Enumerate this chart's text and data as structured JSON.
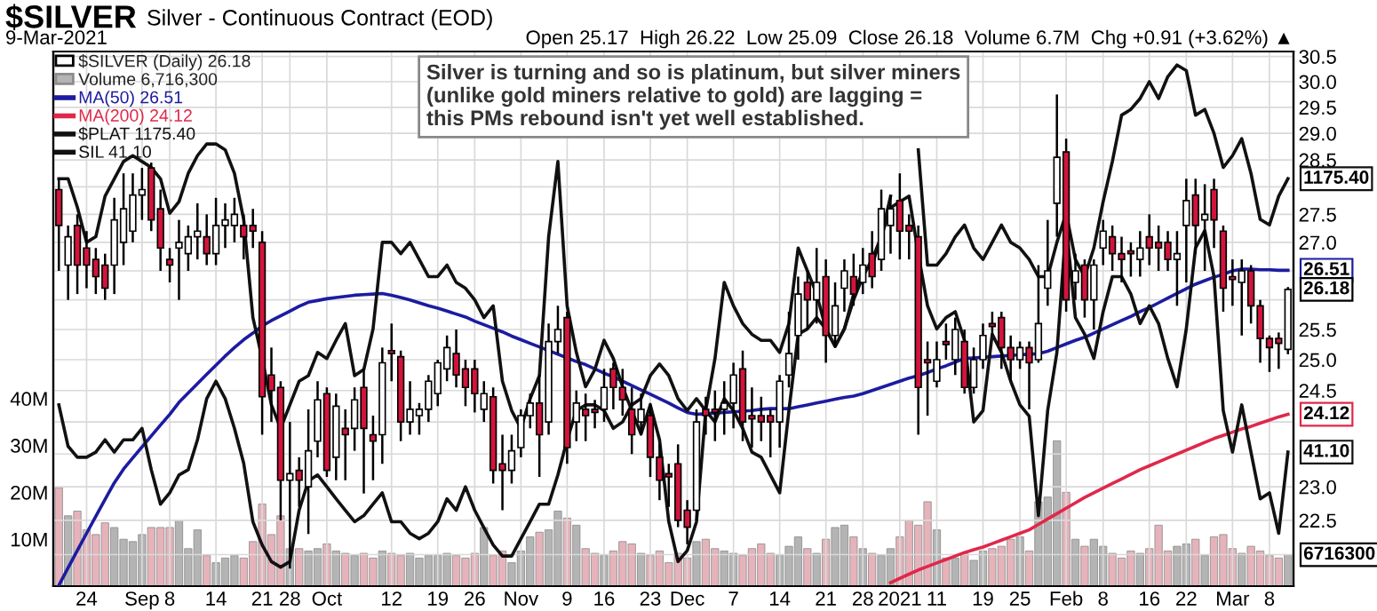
{
  "chart_data": {
    "type": "candlestick",
    "title": "$SILVER",
    "subtitle": "Silver - Continuous Contract (EOD)",
    "annotations": [
      "9-Mar-2021",
      "Open 25.17  High 26.22  Low 25.09  Close 26.18  Volume 6.7M  Chg +0.91 (+3.62%) ▲",
      "Silver is turning and so is platinum, but silver miners\n(unlike gold miners relative to gold) are lagging =\nthis PMs rebound isn't yet well established.",
      "1175.40",
      "26.51",
      "26.18",
      "24.12",
      "41.10",
      "6716300"
    ],
    "categories": [
      null,
      null,
      null,
      "24",
      null,
      null,
      null,
      null,
      null,
      "Sep",
      null,
      null,
      "8",
      null,
      null,
      null,
      null,
      "14",
      null,
      null,
      null,
      null,
      "21",
      null,
      null,
      "28",
      null,
      null,
      null,
      "Oct",
      null,
      null,
      null,
      null,
      null,
      null,
      "12",
      null,
      null,
      null,
      null,
      "19",
      null,
      null,
      null,
      "26",
      null,
      null,
      null,
      null,
      "Nov",
      null,
      null,
      null,
      null,
      "9",
      null,
      null,
      null,
      "16",
      null,
      null,
      null,
      null,
      "23",
      null,
      null,
      null,
      "Dec",
      null,
      null,
      null,
      null,
      "7",
      null,
      null,
      null,
      null,
      "14",
      null,
      null,
      null,
      null,
      "21",
      null,
      null,
      null,
      "28",
      null,
      null,
      null,
      "2021",
      null,
      null,
      null,
      "11",
      null,
      null,
      null,
      null,
      "19",
      null,
      null,
      null,
      "25",
      null,
      null,
      null,
      null,
      "Feb",
      null,
      null,
      null,
      "8",
      null,
      null,
      null,
      null,
      "16",
      null,
      null,
      null,
      "22",
      null,
      null,
      null,
      null,
      "Mar",
      null,
      null,
      null,
      "8",
      null,
      null
    ],
    "ylim": [
      21.55,
      30.6
    ],
    "yticks": [
      {
        "value": 22.0,
        "label": null
      },
      {
        "value": 22.5,
        "label": "22.5"
      },
      {
        "value": 23.0,
        "label": "23.0"
      },
      {
        "value": 23.5,
        "label": null
      },
      {
        "value": 24.0,
        "label": null
      },
      {
        "value": 24.5,
        "label": "24.5"
      },
      {
        "value": 25.0,
        "label": "25.0"
      },
      {
        "value": 25.5,
        "label": "25.5"
      },
      {
        "value": 26.0,
        "label": null
      },
      {
        "value": 26.5,
        "label": null
      },
      {
        "value": 27.0,
        "label": "27.0"
      },
      {
        "value": 27.5,
        "label": "27.5"
      },
      {
        "value": 28.0,
        "label": null
      },
      {
        "value": 28.5,
        "label": "28.5"
      },
      {
        "value": 29.0,
        "label": "29.0"
      },
      {
        "value": 29.5,
        "label": "29.5"
      },
      {
        "value": 30.0,
        "label": "30.0"
      },
      {
        "value": 30.5,
        "label": "30.5"
      }
    ],
    "log": true,
    "y2lim": [
      0,
      114
    ],
    "y2ticks": [
      {
        "value": 10,
        "label": "10M"
      },
      {
        "value": 20,
        "label": "20M"
      },
      {
        "value": 30,
        "label": "30M"
      },
      {
        "value": 40,
        "label": "40M"
      }
    ],
    "grid": true,
    "legend": "top left",
    "series": [
      {
        "name": "$SILVER (Daily) 26.18",
        "ohlc": [
          [
            27.95,
            28.15,
            26.5,
            27.3
          ],
          [
            26.6,
            27.3,
            26.0,
            27.1
          ],
          [
            27.3,
            27.5,
            26.1,
            26.6
          ],
          [
            26.9,
            27.2,
            26.2,
            26.6
          ],
          [
            26.7,
            26.9,
            26.1,
            26.4
          ],
          [
            26.6,
            26.8,
            26.0,
            26.2
          ],
          [
            26.6,
            27.8,
            26.1,
            27.4
          ],
          [
            27.0,
            28.25,
            26.6,
            27.6
          ],
          [
            27.2,
            28.25,
            27.0,
            27.85
          ],
          [
            27.85,
            28.35,
            27.4,
            27.95
          ],
          [
            28.35,
            28.45,
            27.2,
            27.4
          ],
          [
            27.6,
            27.95,
            26.5,
            26.9
          ],
          [
            26.7,
            26.9,
            26.3,
            26.6
          ],
          [
            26.9,
            27.4,
            26.0,
            27.0
          ],
          [
            26.8,
            27.3,
            26.5,
            27.1
          ],
          [
            27.1,
            27.7,
            26.7,
            27.2
          ],
          [
            27.1,
            27.5,
            26.6,
            26.8
          ],
          [
            26.8,
            27.8,
            26.6,
            27.3
          ],
          [
            27.3,
            27.7,
            26.9,
            27.4
          ],
          [
            27.3,
            27.8,
            27.0,
            27.5
          ],
          [
            27.3,
            27.5,
            26.7,
            27.1
          ],
          [
            27.3,
            27.6,
            26.9,
            27.2
          ],
          [
            27.0,
            27.2,
            23.8,
            24.4
          ],
          [
            24.75,
            25.2,
            24.0,
            24.5
          ],
          [
            24.55,
            24.65,
            22.5,
            23.1
          ],
          [
            23.1,
            24.0,
            21.8,
            23.2
          ],
          [
            23.25,
            23.45,
            22.7,
            23.1
          ],
          [
            23.0,
            24.2,
            22.3,
            23.55
          ],
          [
            23.7,
            24.65,
            23.45,
            24.35
          ],
          [
            24.45,
            24.55,
            23.15,
            23.25
          ],
          [
            23.45,
            24.45,
            23.1,
            24.25
          ],
          [
            23.9,
            24.2,
            23.1,
            23.8
          ],
          [
            23.9,
            24.55,
            23.55,
            24.35
          ],
          [
            24.55,
            24.85,
            22.9,
            23.9
          ],
          [
            23.8,
            24.1,
            23.1,
            23.7
          ],
          [
            23.8,
            25.2,
            23.35,
            24.95
          ],
          [
            25.15,
            25.6,
            24.65,
            25.1
          ],
          [
            25.05,
            25.15,
            23.7,
            24.0
          ],
          [
            24.0,
            24.65,
            23.8,
            24.2
          ],
          [
            24.1,
            24.3,
            23.8,
            24.2
          ],
          [
            24.2,
            24.75,
            24.0,
            24.65
          ],
          [
            24.45,
            25.0,
            24.25,
            24.95
          ],
          [
            24.85,
            25.4,
            24.65,
            25.2
          ],
          [
            25.1,
            25.5,
            24.55,
            24.75
          ],
          [
            24.85,
            25.0,
            24.25,
            24.55
          ],
          [
            24.85,
            25.0,
            24.15,
            24.45
          ],
          [
            24.2,
            24.65,
            24.0,
            24.45
          ],
          [
            24.4,
            24.55,
            23.05,
            23.25
          ],
          [
            23.35,
            23.8,
            22.65,
            23.25
          ],
          [
            23.25,
            23.8,
            23.05,
            23.55
          ],
          [
            23.6,
            24.2,
            23.45,
            24.1
          ],
          [
            24.1,
            24.45,
            23.9,
            24.3
          ],
          [
            24.3,
            24.75,
            23.15,
            23.8
          ],
          [
            24.0,
            25.6,
            23.8,
            25.3
          ],
          [
            25.3,
            25.9,
            25.1,
            25.5
          ],
          [
            25.7,
            25.8,
            23.35,
            23.6
          ],
          [
            24.0,
            24.5,
            23.7,
            24.3
          ],
          [
            24.2,
            24.45,
            23.7,
            24.1
          ],
          [
            24.2,
            24.35,
            23.9,
            24.15
          ],
          [
            24.2,
            24.85,
            24.0,
            24.55
          ],
          [
            24.85,
            24.95,
            24.2,
            24.55
          ],
          [
            24.55,
            24.85,
            24.1,
            24.35
          ],
          [
            24.2,
            24.55,
            23.5,
            23.8
          ],
          [
            24.0,
            24.45,
            23.8,
            24.2
          ],
          [
            24.1,
            24.3,
            23.15,
            23.45
          ],
          [
            23.45,
            23.65,
            22.8,
            23.1
          ],
          [
            23.2,
            23.35,
            22.7,
            23.15
          ],
          [
            23.35,
            23.65,
            22.4,
            22.5
          ],
          [
            22.65,
            22.8,
            22.15,
            22.4
          ],
          [
            22.65,
            24.2,
            22.5,
            24.0
          ],
          [
            24.2,
            24.4,
            23.8,
            24.1
          ],
          [
            24.2,
            24.5,
            23.7,
            24.15
          ],
          [
            24.2,
            24.65,
            23.8,
            24.3
          ],
          [
            24.3,
            24.95,
            23.9,
            24.75
          ],
          [
            24.85,
            25.15,
            23.7,
            24.0
          ],
          [
            24.1,
            24.55,
            23.6,
            24.05
          ],
          [
            24.1,
            24.4,
            23.7,
            24.0
          ],
          [
            24.1,
            24.2,
            23.45,
            24.0
          ],
          [
            24.0,
            24.75,
            23.6,
            24.65
          ],
          [
            24.75,
            25.8,
            24.55,
            25.1
          ],
          [
            25.4,
            26.4,
            25.0,
            26.1
          ],
          [
            26.3,
            26.5,
            25.5,
            26.0
          ],
          [
            26.0,
            26.9,
            25.6,
            26.3
          ],
          [
            26.4,
            26.7,
            24.95,
            25.4
          ],
          [
            25.4,
            26.3,
            25.2,
            25.9
          ],
          [
            26.2,
            26.7,
            25.8,
            26.5
          ],
          [
            26.4,
            26.8,
            25.9,
            26.1
          ],
          [
            26.3,
            26.9,
            26.1,
            26.6
          ],
          [
            26.8,
            27.2,
            26.2,
            26.4
          ],
          [
            26.7,
            27.95,
            26.5,
            27.6
          ],
          [
            27.3,
            27.85,
            26.8,
            27.6
          ],
          [
            27.75,
            28.25,
            26.7,
            27.2
          ],
          [
            27.3,
            27.5,
            26.7,
            27.2
          ],
          [
            27.1,
            27.3,
            23.8,
            24.55
          ],
          [
            25.0,
            25.3,
            24.1,
            24.95
          ],
          [
            24.65,
            25.3,
            24.55,
            25.0
          ],
          [
            25.3,
            25.6,
            25.0,
            25.25
          ],
          [
            25.0,
            25.7,
            24.75,
            25.5
          ],
          [
            25.3,
            25.5,
            24.45,
            24.55
          ],
          [
            24.55,
            25.2,
            24.45,
            25.0
          ],
          [
            25.0,
            25.6,
            24.85,
            25.4
          ],
          [
            25.6,
            25.8,
            25.4,
            25.55
          ],
          [
            25.7,
            25.8,
            24.85,
            25.2
          ],
          [
            25.2,
            25.4,
            24.65,
            25.0
          ],
          [
            25.0,
            25.3,
            24.85,
            25.2
          ],
          [
            25.2,
            25.3,
            24.2,
            24.95
          ],
          [
            25.0,
            26.6,
            24.95,
            25.6
          ],
          [
            26.2,
            27.4,
            25.9,
            26.5
          ],
          [
            27.7,
            29.75,
            27.1,
            28.55
          ],
          [
            28.65,
            28.9,
            25.8,
            26.0
          ],
          [
            26.3,
            26.8,
            26.0,
            26.5
          ],
          [
            26.6,
            26.7,
            25.7,
            26.0
          ],
          [
            26.0,
            26.7,
            25.5,
            26.6
          ],
          [
            26.9,
            27.4,
            26.6,
            27.2
          ],
          [
            27.1,
            27.3,
            26.5,
            26.8
          ],
          [
            26.8,
            27.1,
            26.3,
            26.7
          ],
          [
            26.85,
            27.0,
            26.4,
            26.8
          ],
          [
            26.7,
            27.2,
            26.4,
            26.9
          ],
          [
            27.1,
            27.5,
            26.6,
            26.9
          ],
          [
            27.0,
            27.3,
            26.5,
            26.9
          ],
          [
            27.0,
            27.2,
            26.5,
            26.7
          ],
          [
            26.7,
            27.2,
            25.9,
            26.8
          ],
          [
            27.3,
            28.15,
            26.3,
            27.75
          ],
          [
            27.85,
            28.15,
            26.8,
            27.3
          ],
          [
            27.4,
            28.05,
            26.5,
            27.5
          ],
          [
            27.95,
            28.15,
            26.9,
            27.4
          ],
          [
            27.2,
            27.3,
            25.8,
            26.2
          ],
          [
            26.4,
            26.7,
            25.9,
            26.35
          ],
          [
            26.3,
            26.7,
            25.4,
            26.5
          ],
          [
            26.5,
            26.6,
            25.6,
            25.9
          ],
          [
            25.9,
            26.0,
            24.95,
            25.35
          ],
          [
            25.35,
            25.4,
            24.8,
            25.2
          ],
          [
            25.35,
            25.45,
            24.85,
            25.27
          ],
          [
            25.17,
            26.22,
            25.09,
            26.18
          ]
        ],
        "colors": [
          "#d2143c",
          "#ffffff",
          "#d2143c",
          "#d2143c",
          "#d2143c",
          "#d2143c",
          "#ffffff",
          "#ffffff",
          "#ffffff",
          "#ffffff",
          "#d2143c",
          "#d2143c",
          "#d2143c",
          "#ffffff",
          "#ffffff",
          "#ffffff",
          "#d2143c",
          "#ffffff",
          "#ffffff",
          "#ffffff",
          "#d2143c",
          "#d2143c",
          "#d2143c",
          "#d2143c",
          "#d2143c",
          "#ffffff",
          "#d2143c",
          "#ffffff",
          "#ffffff",
          "#d2143c",
          "#ffffff",
          "#d2143c",
          "#ffffff",
          "#d2143c",
          "#d2143c",
          "#ffffff",
          "#d2143c",
          "#d2143c",
          "#ffffff",
          "#ffffff",
          "#ffffff",
          "#ffffff",
          "#ffffff",
          "#d2143c",
          "#d2143c",
          "#d2143c",
          "#ffffff",
          "#d2143c",
          "#d2143c",
          "#ffffff",
          "#ffffff",
          "#ffffff",
          "#d2143c",
          "#ffffff",
          "#ffffff",
          "#d2143c",
          "#ffffff",
          "#d2143c",
          "#d2143c",
          "#ffffff",
          "#d2143c",
          "#d2143c",
          "#d2143c",
          "#ffffff",
          "#d2143c",
          "#d2143c",
          "#d2143c",
          "#d2143c",
          "#d2143c",
          "#ffffff",
          "#d2143c",
          "#d2143c",
          "#ffffff",
          "#ffffff",
          "#d2143c",
          "#d2143c",
          "#d2143c",
          "#d2143c",
          "#ffffff",
          "#ffffff",
          "#ffffff",
          "#d2143c",
          "#ffffff",
          "#d2143c",
          "#ffffff",
          "#ffffff",
          "#d2143c",
          "#ffffff",
          "#d2143c",
          "#ffffff",
          "#ffffff",
          "#d2143c",
          "#d2143c",
          "#d2143c",
          "#d2143c",
          "#ffffff",
          "#d2143c",
          "#ffffff",
          "#d2143c",
          "#ffffff",
          "#ffffff",
          "#d2143c",
          "#d2143c",
          "#d2143c",
          "#ffffff",
          "#d2143c",
          "#ffffff",
          "#ffffff",
          "#ffffff",
          "#d2143c",
          "#ffffff",
          "#d2143c",
          "#ffffff",
          "#ffffff",
          "#d2143c",
          "#d2143c",
          "#d2143c",
          "#ffffff",
          "#d2143c",
          "#d2143c",
          "#d2143c",
          "#ffffff",
          "#ffffff",
          "#d2143c",
          "#ffffff",
          "#d2143c",
          "#d2143c",
          "#d2143c",
          "#ffffff",
          "#d2143c",
          "#d2143c",
          "#d2143c",
          "#d2143c",
          "#ffffff"
        ]
      },
      {
        "name": "Volume 6,716,300",
        "type": "bar",
        "axis": "y2",
        "values": [
          21,
          15,
          16,
          12,
          11,
          13.5,
          12.5,
          10,
          9.5,
          11,
          12.5,
          12.5,
          12.5,
          14,
          8,
          12,
          6.5,
          5,
          6,
          6.5,
          6,
          9.5,
          17.5,
          11,
          15,
          8,
          8,
          7.5,
          8,
          9,
          7.5,
          7,
          6.5,
          7,
          6,
          7.5,
          7,
          6.5,
          7,
          6,
          6.5,
          6.5,
          7,
          6.5,
          6,
          7,
          12.5,
          6.5,
          7.5,
          5,
          7.5,
          10.5,
          11.5,
          12,
          16,
          14.5,
          13,
          8,
          7,
          6.5,
          7.5,
          9.5,
          9,
          7,
          6.5,
          7.5,
          5,
          7,
          6,
          9.5,
          10,
          8,
          7.5,
          7,
          6.5,
          8,
          9,
          7,
          6.5,
          8.5,
          10.5,
          8,
          7,
          10,
          12.5,
          13,
          10.5,
          8,
          7,
          6.5,
          8,
          10.5,
          14,
          13,
          18,
          12,
          6,
          6,
          7,
          5.5,
          7.5,
          8,
          8.5,
          10,
          10.5,
          7.5,
          18,
          19,
          31,
          20,
          10,
          8.5,
          10,
          8.5,
          7,
          6,
          7.5,
          7,
          8,
          13,
          7.5,
          8.5,
          9,
          10,
          6.5,
          10.5,
          11,
          8,
          7,
          8.5,
          7.5,
          6.5,
          6,
          6.7
        ],
        "colors": [
          "#e6b3bb",
          "#b4b4b4",
          "#e6b3bb",
          "#e6b3bb",
          "#e6b3bb",
          "#e6b3bb",
          "#b4b4b4",
          "#b4b4b4",
          "#b4b4b4",
          "#b4b4b4",
          "#e6b3bb",
          "#e6b3bb",
          "#e6b3bb",
          "#b4b4b4",
          "#b4b4b4",
          "#b4b4b4",
          "#e6b3bb",
          "#b4b4b4",
          "#b4b4b4",
          "#b4b4b4",
          "#e6b3bb",
          "#e6b3bb",
          "#e6b3bb",
          "#e6b3bb",
          "#e6b3bb",
          "#b4b4b4",
          "#e6b3bb",
          "#b4b4b4",
          "#b4b4b4",
          "#e6b3bb",
          "#b4b4b4",
          "#e6b3bb",
          "#b4b4b4",
          "#e6b3bb",
          "#e6b3bb",
          "#b4b4b4",
          "#e6b3bb",
          "#e6b3bb",
          "#b4b4b4",
          "#b4b4b4",
          "#b4b4b4",
          "#b4b4b4",
          "#b4b4b4",
          "#e6b3bb",
          "#e6b3bb",
          "#e6b3bb",
          "#b4b4b4",
          "#e6b3bb",
          "#e6b3bb",
          "#b4b4b4",
          "#b4b4b4",
          "#b4b4b4",
          "#e6b3bb",
          "#b4b4b4",
          "#b4b4b4",
          "#e6b3bb",
          "#b4b4b4",
          "#e6b3bb",
          "#e6b3bb",
          "#b4b4b4",
          "#e6b3bb",
          "#e6b3bb",
          "#e6b3bb",
          "#b4b4b4",
          "#e6b3bb",
          "#e6b3bb",
          "#e6b3bb",
          "#e6b3bb",
          "#e6b3bb",
          "#b4b4b4",
          "#e6b3bb",
          "#e6b3bb",
          "#b4b4b4",
          "#b4b4b4",
          "#e6b3bb",
          "#e6b3bb",
          "#e6b3bb",
          "#e6b3bb",
          "#b4b4b4",
          "#b4b4b4",
          "#b4b4b4",
          "#e6b3bb",
          "#b4b4b4",
          "#e6b3bb",
          "#b4b4b4",
          "#b4b4b4",
          "#e6b3bb",
          "#b4b4b4",
          "#e6b3bb",
          "#b4b4b4",
          "#b4b4b4",
          "#e6b3bb",
          "#e6b3bb",
          "#e6b3bb",
          "#e6b3bb",
          "#b4b4b4",
          "#e6b3bb",
          "#b4b4b4",
          "#e6b3bb",
          "#b4b4b4",
          "#b4b4b4",
          "#e6b3bb",
          "#e6b3bb",
          "#e6b3bb",
          "#b4b4b4",
          "#e6b3bb",
          "#b4b4b4",
          "#b4b4b4",
          "#b4b4b4",
          "#e6b3bb",
          "#b4b4b4",
          "#e6b3bb",
          "#b4b4b4",
          "#b4b4b4",
          "#e6b3bb",
          "#e6b3bb",
          "#e6b3bb",
          "#b4b4b4",
          "#e6b3bb",
          "#e6b3bb",
          "#e6b3bb",
          "#b4b4b4",
          "#b4b4b4",
          "#e6b3bb",
          "#b4b4b4",
          "#e6b3bb",
          "#e6b3bb",
          "#e6b3bb",
          "#b4b4b4",
          "#e6b3bb",
          "#e6b3bb",
          "#e6b3bb",
          "#e6b3bb",
          "#b4b4b4"
        ]
      },
      {
        "name": "MA(50) 26.51",
        "type": "line",
        "color": "#1c1ca0",
        "values": [
          21.56,
          21.81,
          22.06,
          22.31,
          22.56,
          22.81,
          23.06,
          23.27,
          23.44,
          23.61,
          23.78,
          23.95,
          24.12,
          24.31,
          24.46,
          24.61,
          24.76,
          24.91,
          25.06,
          25.2,
          25.33,
          25.44,
          25.56,
          25.65,
          25.73,
          25.81,
          25.89,
          25.96,
          25.99,
          26.02,
          26.04,
          26.06,
          26.08,
          26.09,
          26.1,
          26.11,
          26.08,
          26.04,
          26.0,
          25.95,
          25.9,
          25.86,
          25.81,
          25.76,
          25.71,
          25.64,
          25.58,
          25.52,
          25.46,
          25.39,
          25.33,
          25.27,
          25.21,
          25.15,
          25.09,
          25.03,
          24.97,
          24.92,
          24.85,
          24.78,
          24.72,
          24.65,
          24.58,
          24.51,
          24.44,
          24.37,
          24.3,
          24.22,
          24.15,
          24.12,
          24.13,
          24.14,
          24.15,
          24.16,
          24.17,
          24.18,
          24.2,
          24.21,
          24.21,
          24.21,
          24.24,
          24.27,
          24.3,
          24.33,
          24.36,
          24.39,
          24.41,
          24.45,
          24.5,
          24.55,
          24.6,
          24.65,
          24.7,
          24.74,
          24.79,
          24.85,
          24.9,
          24.96,
          25.02,
          25.03,
          25.04,
          25.05,
          25.06,
          25.07,
          25.08,
          25.09,
          25.1,
          25.14,
          25.2,
          25.26,
          25.32,
          25.37,
          25.44,
          25.51,
          25.58,
          25.65,
          25.72,
          25.8,
          25.87,
          25.95,
          26.03,
          26.11,
          26.19,
          26.27,
          26.33,
          26.39,
          26.44,
          26.5,
          26.53,
          26.53,
          26.52,
          26.52,
          26.51,
          26.51
        ]
      },
      {
        "name": "MA(200) 24.12",
        "type": "line",
        "color": "#e0284a",
        "values": [
          null,
          null,
          null,
          null,
          null,
          null,
          null,
          null,
          null,
          null,
          null,
          null,
          null,
          null,
          null,
          null,
          null,
          null,
          null,
          null,
          null,
          null,
          null,
          null,
          null,
          null,
          null,
          null,
          null,
          null,
          null,
          null,
          null,
          null,
          null,
          null,
          null,
          null,
          null,
          null,
          null,
          null,
          null,
          null,
          null,
          null,
          null,
          null,
          null,
          null,
          null,
          null,
          null,
          null,
          null,
          null,
          null,
          null,
          null,
          null,
          null,
          null,
          null,
          null,
          null,
          null,
          null,
          null,
          null,
          null,
          null,
          null,
          null,
          null,
          null,
          null,
          null,
          null,
          null,
          null,
          null,
          null,
          null,
          null,
          null,
          null,
          null,
          null,
          null,
          null,
          21.6,
          21.66,
          21.72,
          21.78,
          21.83,
          21.88,
          21.93,
          21.98,
          22.03,
          22.07,
          22.11,
          22.16,
          22.21,
          22.26,
          22.31,
          22.36,
          22.44,
          22.52,
          22.6,
          22.68,
          22.76,
          22.84,
          22.91,
          22.98,
          23.05,
          23.12,
          23.19,
          23.26,
          23.32,
          23.38,
          23.44,
          23.5,
          23.56,
          23.62,
          23.68,
          23.74,
          23.79,
          23.84,
          23.89,
          23.93,
          23.98,
          24.03,
          24.08,
          24.12
        ]
      },
      {
        "name": "$PLAT 1175.40",
        "type": "line",
        "color": "#111111",
        "values": [
          28.15,
          28.15,
          27.63,
          27.0,
          27.1,
          27.83,
          28.15,
          28.47,
          28.58,
          28.47,
          28.36,
          28.15,
          27.52,
          27.73,
          28.25,
          28.58,
          28.8,
          28.8,
          28.69,
          28.25,
          27.41,
          25.7,
          25.02,
          24.27,
          23.9,
          24.27,
          24.65,
          24.74,
          25.12,
          25.02,
          25.32,
          25.6,
          24.74,
          24.84,
          25.51,
          27.0,
          27.0,
          26.8,
          27.0,
          26.7,
          26.4,
          26.4,
          26.6,
          26.3,
          26.2,
          26.0,
          25.7,
          25.9,
          24.65,
          24.18,
          23.9,
          24.37,
          24.74,
          27.1,
          28.47,
          25.9,
          25.12,
          24.56,
          24.84,
          25.32,
          25.02,
          24.56,
          24.18,
          23.81,
          24.27,
          23.72,
          22.48,
          21.9,
          22.06,
          22.48,
          24.18,
          25.02,
          26.3,
          25.9,
          25.6,
          25.42,
          25.32,
          25.32,
          25.12,
          25.6,
          26.9,
          26.5,
          26.1,
          25.51,
          25.22,
          25.51,
          26.0,
          26.4,
          26.7,
          27.1,
          27.83,
          null,
          null,
          28.69,
          26.6,
          26.6,
          26.8,
          27.1,
          27.31,
          26.9,
          26.7,
          27.0,
          27.31,
          27.0,
          26.9,
          26.7,
          26.4,
          26.4,
          27.0,
          27.52,
          26.7,
          26.4,
          26.9,
          27.73,
          28.47,
          29.35,
          29.46,
          29.67,
          30.0,
          29.67,
          30.1,
          30.33,
          30.22,
          29.35,
          29.46,
          29.0,
          28.36,
          28.58,
          28.9,
          28.25,
          27.41,
          27.31,
          27.83,
          28.15
        ]
      },
      {
        "name": "SIL 41.10",
        "type": "line",
        "color": "#111111",
        "values": [
          24.27,
          23.62,
          23.45,
          23.45,
          23.53,
          23.72,
          23.53,
          23.72,
          23.72,
          23.9,
          23.26,
          22.74,
          22.91,
          23.18,
          23.26,
          23.72,
          24.37,
          24.65,
          24.37,
          23.9,
          23.36,
          22.48,
          22.14,
          21.9,
          21.82,
          21.9,
          22.65,
          23.09,
          23.18,
          23.0,
          22.82,
          22.65,
          22.48,
          22.57,
          22.74,
          22.91,
          22.48,
          22.48,
          22.31,
          22.23,
          22.31,
          22.48,
          22.82,
          22.65,
          23.0,
          22.65,
          22.39,
          22.14,
          21.98,
          21.98,
          22.23,
          22.48,
          22.74,
          22.74,
          23.18,
          23.72,
          24.18,
          24.27,
          24.27,
          24.18,
          23.9,
          24.0,
          24.27,
          24.37,
          24.74,
          24.93,
          24.74,
          24.37,
          24.18,
          24.37,
          24.18,
          24.0,
          24.37,
          24.18,
          23.9,
          23.53,
          23.45,
          23.18,
          22.91,
          24.18,
          25.42,
          25.51,
          25.7,
          25.51,
          25.22,
          25.51,
          26.1,
          26.5,
          26.6,
          27.1,
          27.62,
          27.73,
          27.83,
          26.8,
          25.9,
          25.51,
          25.7,
          25.8,
          25.32,
          24.0,
          24.18,
          25.42,
          25.12,
          24.65,
          24.27,
          24.09,
          22.57,
          24.18,
          25.12,
          27.31,
          25.7,
          25.42,
          25.02,
          25.8,
          26.4,
          26.4,
          26.1,
          25.6,
          25.9,
          25.6,
          25.02,
          24.56,
          25.51,
          26.9,
          27.21,
          26.4,
          24.18,
          23.53,
          24.27,
          23.53,
          22.82,
          22.91,
          22.31,
          23.53
        ]
      }
    ]
  }
}
